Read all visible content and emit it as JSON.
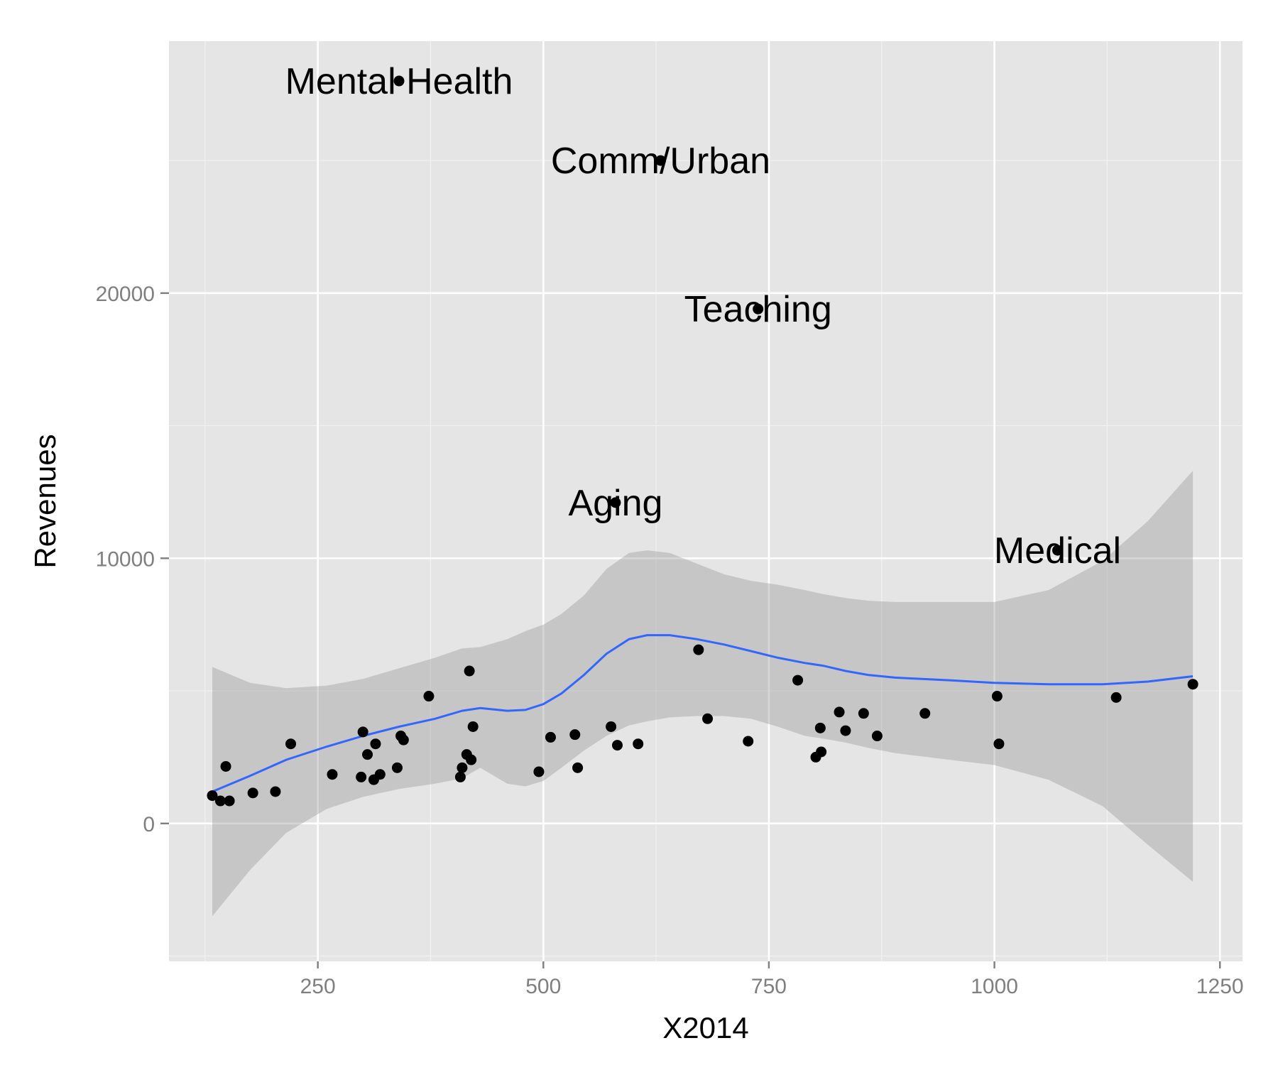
{
  "chart_data": {
    "type": "scatter",
    "title": "",
    "xlabel": "X2014",
    "ylabel": "Revenues",
    "xlim": [
      85,
      1275
    ],
    "ylim": [
      -5200,
      29500
    ],
    "x_ticks": [
      250,
      500,
      750,
      1000,
      1250
    ],
    "x_minor_ticks": [
      125,
      375,
      625,
      875,
      1125
    ],
    "y_ticks": [
      0,
      10000,
      20000
    ],
    "y_minor_ticks": [
      -5000,
      5000,
      15000,
      25000
    ],
    "grid": true,
    "background": "#e5e5e5",
    "colors": {
      "points": "#000000",
      "smooth_line": "#3366ff",
      "band": "#999999"
    },
    "points": [
      {
        "x": 133,
        "y": 1050
      },
      {
        "x": 142,
        "y": 850
      },
      {
        "x": 148,
        "y": 2150
      },
      {
        "x": 152,
        "y": 850
      },
      {
        "x": 178,
        "y": 1150
      },
      {
        "x": 203,
        "y": 1200
      },
      {
        "x": 220,
        "y": 3000
      },
      {
        "x": 266,
        "y": 1850
      },
      {
        "x": 298,
        "y": 1750
      },
      {
        "x": 300,
        "y": 3450
      },
      {
        "x": 305,
        "y": 2600
      },
      {
        "x": 312,
        "y": 1650
      },
      {
        "x": 314,
        "y": 3000
      },
      {
        "x": 319,
        "y": 1850
      },
      {
        "x": 338,
        "y": 2100
      },
      {
        "x": 342,
        "y": 3300
      },
      {
        "x": 345,
        "y": 3150
      },
      {
        "x": 373,
        "y": 4800
      },
      {
        "x": 408,
        "y": 1750
      },
      {
        "x": 410,
        "y": 2100
      },
      {
        "x": 415,
        "y": 2600
      },
      {
        "x": 418,
        "y": 5750
      },
      {
        "x": 420,
        "y": 2400
      },
      {
        "x": 422,
        "y": 3650
      },
      {
        "x": 495,
        "y": 1950
      },
      {
        "x": 508,
        "y": 3250
      },
      {
        "x": 535,
        "y": 3350
      },
      {
        "x": 538,
        "y": 2100
      },
      {
        "x": 575,
        "y": 3650
      },
      {
        "x": 582,
        "y": 2950
      },
      {
        "x": 605,
        "y": 3000
      },
      {
        "x": 672,
        "y": 6550
      },
      {
        "x": 682,
        "y": 3950
      },
      {
        "x": 727,
        "y": 3100
      },
      {
        "x": 782,
        "y": 5400
      },
      {
        "x": 802,
        "y": 2500
      },
      {
        "x": 807,
        "y": 3600
      },
      {
        "x": 808,
        "y": 2700
      },
      {
        "x": 828,
        "y": 4200
      },
      {
        "x": 835,
        "y": 3500
      },
      {
        "x": 855,
        "y": 4150
      },
      {
        "x": 870,
        "y": 3300
      },
      {
        "x": 923,
        "y": 4150
      },
      {
        "x": 1003,
        "y": 4800
      },
      {
        "x": 1005,
        "y": 3000
      },
      {
        "x": 1135,
        "y": 4750
      },
      {
        "x": 1220,
        "y": 5250
      }
    ],
    "labeled_points": [
      {
        "label": "Mental Health",
        "x": 340,
        "y": 28000
      },
      {
        "label": "Comm/Urban",
        "x": 630,
        "y": 25000
      },
      {
        "label": "Teaching",
        "x": 738,
        "y": 19400
      },
      {
        "label": "Aging",
        "x": 580,
        "y": 12100
      },
      {
        "label": "Medical",
        "x": 1070,
        "y": 10300
      }
    ],
    "smooth": {
      "x": [
        133,
        175,
        215,
        260,
        300,
        340,
        380,
        410,
        430,
        460,
        480,
        500,
        520,
        545,
        570,
        595,
        615,
        640,
        670,
        700,
        730,
        760,
        790,
        810,
        835,
        860,
        890,
        950,
        1000,
        1060,
        1120,
        1170,
        1220
      ],
      "y": [
        1200,
        1800,
        2400,
        2900,
        3300,
        3650,
        3950,
        4250,
        4350,
        4250,
        4280,
        4500,
        4900,
        5600,
        6400,
        6950,
        7100,
        7100,
        6950,
        6750,
        6500,
        6250,
        6050,
        5950,
        5750,
        5600,
        5500,
        5400,
        5300,
        5250,
        5250,
        5350,
        5550
      ],
      "upper": [
        5900,
        5300,
        5100,
        5200,
        5450,
        5850,
        6250,
        6600,
        6650,
        6950,
        7250,
        7500,
        7900,
        8600,
        9600,
        10200,
        10300,
        10200,
        9800,
        9400,
        9150,
        9000,
        8800,
        8650,
        8500,
        8400,
        8350,
        8350,
        8350,
        8800,
        9900,
        11400,
        13300
      ],
      "lower": [
        -3500,
        -1750,
        -350,
        550,
        1000,
        1300,
        1500,
        1700,
        2100,
        1500,
        1400,
        1600,
        2100,
        2750,
        3300,
        3700,
        3850,
        4000,
        4050,
        4050,
        3950,
        3650,
        3300,
        3200,
        3050,
        2850,
        2650,
        2400,
        2200,
        1650,
        650,
        -800,
        -2200
      ]
    }
  }
}
